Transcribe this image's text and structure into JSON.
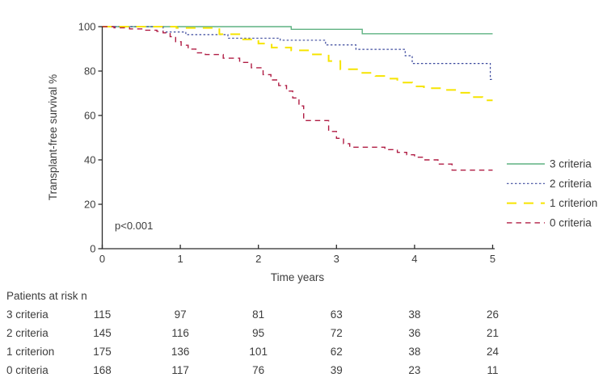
{
  "chart_data": {
    "type": "line",
    "subtype": "kaplan-meier-step",
    "title": "",
    "xlabel": "Time years",
    "ylabel": "Transplant-free survival %",
    "annotation": "p<0.001",
    "xlim": [
      0,
      5
    ],
    "ylim": [
      0,
      100
    ],
    "x_ticks": [
      0,
      1,
      2,
      3,
      4,
      5
    ],
    "y_ticks": [
      0,
      20,
      40,
      60,
      80,
      100
    ],
    "grid": "off",
    "legend_position": "right-outside",
    "axis_color": "#2b2b2b",
    "series": [
      {
        "name": "3 criteria",
        "color": "#5fb282",
        "dash": "solid",
        "start": 100,
        "steps": [
          [
            2.42,
            98.8
          ],
          [
            3.33,
            96.8
          ]
        ]
      },
      {
        "name": "2 criteria",
        "color": "#3c4a9d",
        "dash": "dotted",
        "start": 100,
        "steps": [
          [
            0.78,
            97.6
          ],
          [
            1.07,
            96.4
          ],
          [
            1.61,
            94.8
          ],
          [
            2.28,
            93.9
          ],
          [
            2.86,
            91.8
          ],
          [
            3.25,
            89.8
          ],
          [
            3.88,
            86.9
          ],
          [
            3.97,
            83.4
          ],
          [
            4.97,
            76.2
          ]
        ]
      },
      {
        "name": "1 criterion",
        "color": "#f6e400",
        "dash": "long-dash",
        "start": 100,
        "steps": [
          [
            0.95,
            99.4
          ],
          [
            1.5,
            96.6
          ],
          [
            1.78,
            94.3
          ],
          [
            2.0,
            92.4
          ],
          [
            2.17,
            90.6
          ],
          [
            2.42,
            89.3
          ],
          [
            2.67,
            87.5
          ],
          [
            2.9,
            84.5
          ],
          [
            3.05,
            80.8
          ],
          [
            3.3,
            79.2
          ],
          [
            3.5,
            77.8
          ],
          [
            3.63,
            76.6
          ],
          [
            3.78,
            74.8
          ],
          [
            3.97,
            73.1
          ],
          [
            4.12,
            72.3
          ],
          [
            4.35,
            71.5
          ],
          [
            4.55,
            70.2
          ],
          [
            4.72,
            68.3
          ],
          [
            4.87,
            66.8
          ]
        ]
      },
      {
        "name": "0 criteria",
        "color": "#b01d44",
        "dash": "dash",
        "start": 100,
        "steps": [
          [
            0.15,
            99.5
          ],
          [
            0.35,
            99.0
          ],
          [
            0.55,
            98.4
          ],
          [
            0.7,
            97.9
          ],
          [
            0.78,
            97.2
          ],
          [
            0.87,
            95.5
          ],
          [
            0.94,
            93.2
          ],
          [
            1.01,
            91.6
          ],
          [
            1.1,
            89.9
          ],
          [
            1.2,
            88.2
          ],
          [
            1.32,
            87.4
          ],
          [
            1.55,
            85.8
          ],
          [
            1.76,
            83.9
          ],
          [
            1.91,
            81.5
          ],
          [
            2.06,
            78.4
          ],
          [
            2.16,
            76.0
          ],
          [
            2.26,
            73.5
          ],
          [
            2.36,
            71.0
          ],
          [
            2.44,
            67.9
          ],
          [
            2.52,
            64.3
          ],
          [
            2.58,
            57.7
          ],
          [
            2.9,
            52.8
          ],
          [
            3.0,
            49.7
          ],
          [
            3.09,
            47.3
          ],
          [
            3.17,
            45.7
          ],
          [
            3.62,
            44.6
          ],
          [
            3.78,
            43.4
          ],
          [
            3.9,
            42.3
          ],
          [
            4.0,
            41.2
          ],
          [
            4.1,
            40.0
          ],
          [
            4.3,
            38.1
          ],
          [
            4.48,
            35.4
          ]
        ]
      }
    ]
  },
  "risk_table": {
    "title": "Patients at risk n",
    "time_points": [
      0,
      1,
      2,
      3,
      4,
      5
    ],
    "rows": [
      {
        "label": "3 criteria",
        "values": [
          "115",
          "97",
          "81",
          "63",
          "38",
          "26"
        ]
      },
      {
        "label": "2 criteria",
        "values": [
          "145",
          "116",
          "95",
          "72",
          "36",
          "21"
        ]
      },
      {
        "label": "1 criterion",
        "values": [
          "175",
          "136",
          "101",
          "62",
          "38",
          "24"
        ]
      },
      {
        "label": "0 criteria",
        "values": [
          "168",
          "117",
          "76",
          "39",
          "23",
          "11"
        ]
      }
    ]
  }
}
